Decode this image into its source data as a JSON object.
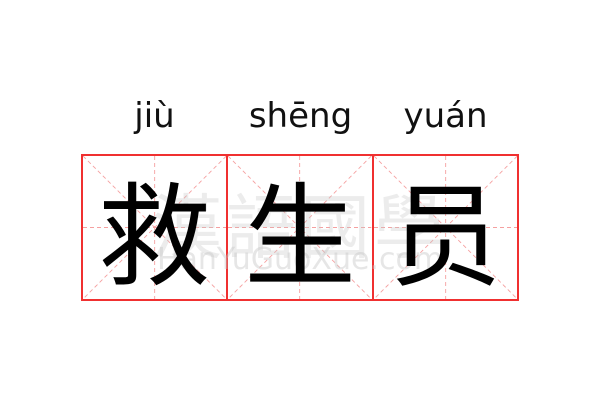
{
  "cells": [
    {
      "pinyin": "jiù",
      "character": "救"
    },
    {
      "pinyin": "shēng",
      "character": "生"
    },
    {
      "pinyin": "yuán",
      "character": "员"
    }
  ],
  "watermark": {
    "chinese": "漢語國學",
    "site": "HanYuGuoXue.com"
  },
  "colors": {
    "grid_border": "#f03030",
    "guide_lines": "#f5a0a0",
    "text": "#000000"
  }
}
